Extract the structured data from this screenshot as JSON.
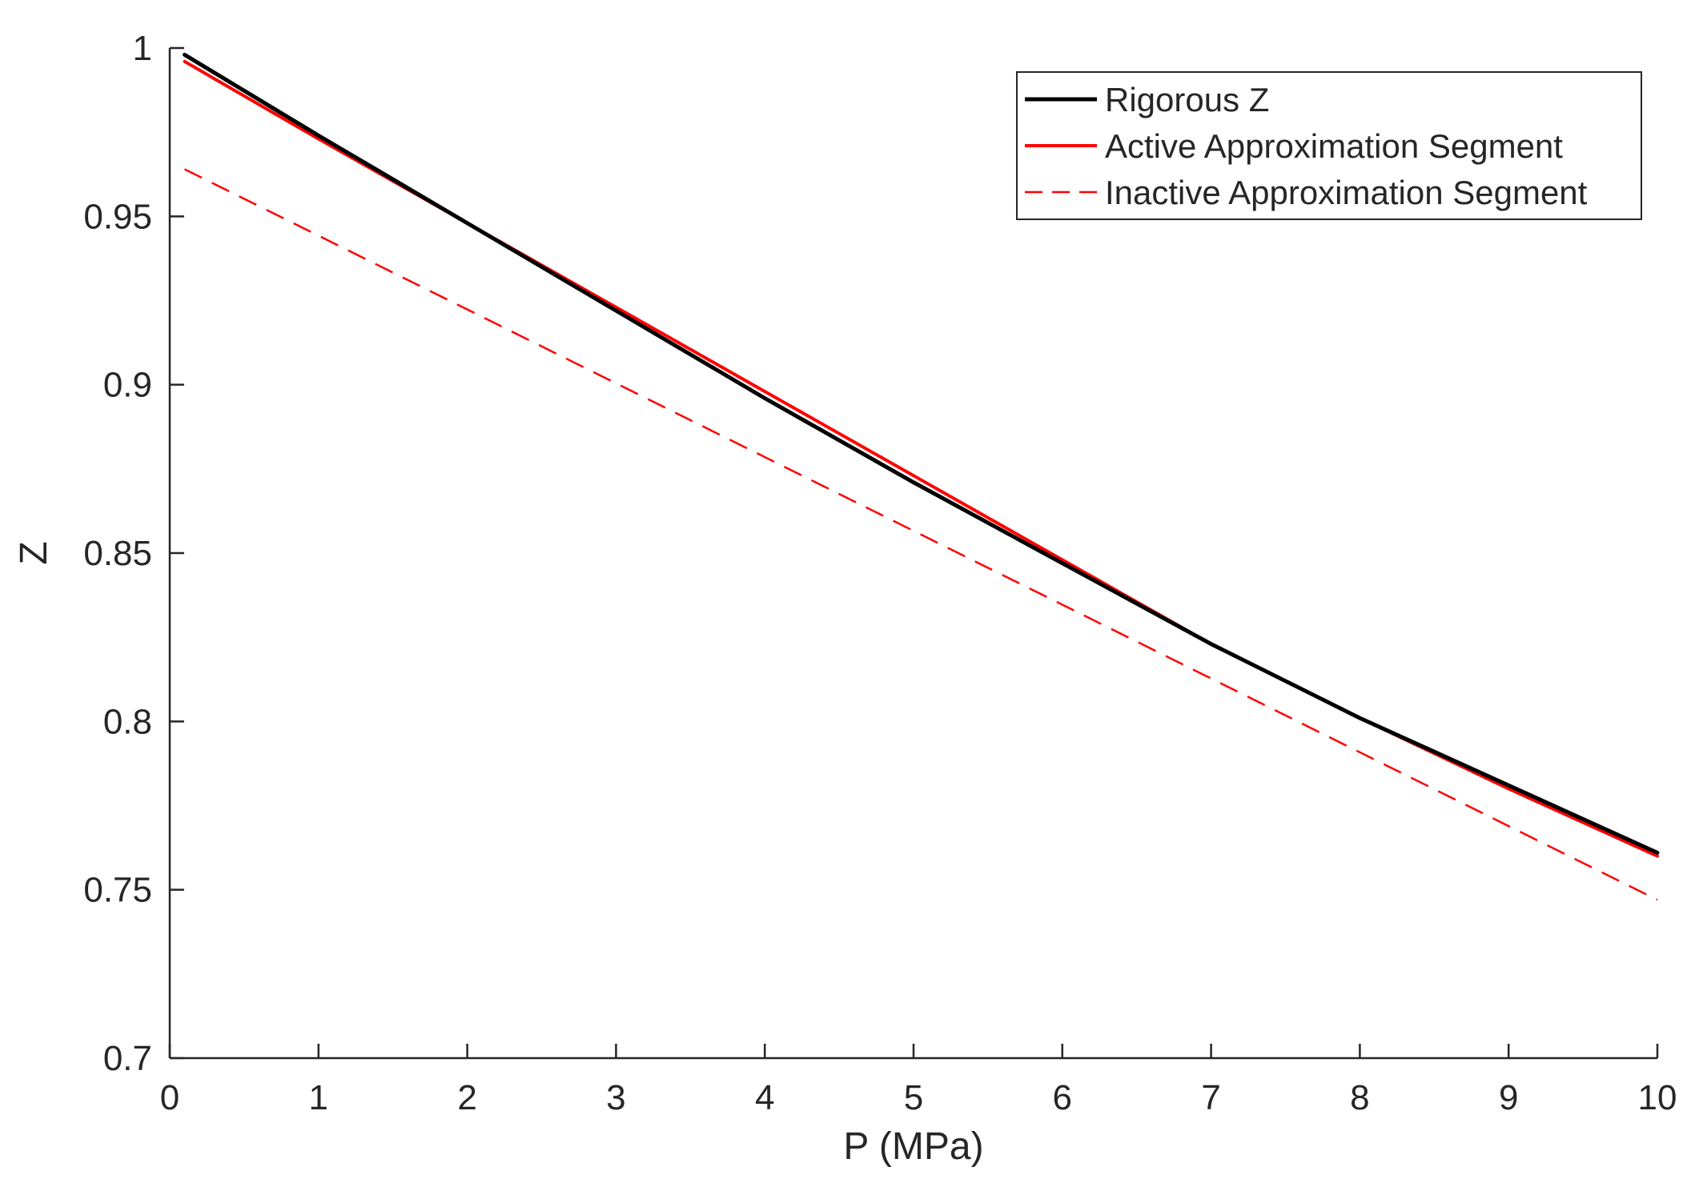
{
  "chart_data": {
    "type": "line",
    "xlabel": "P (MPa)",
    "ylabel": "Z",
    "xlim": [
      0,
      10
    ],
    "ylim": [
      0.7,
      1
    ],
    "xticks": [
      0,
      1,
      2,
      3,
      4,
      5,
      6,
      7,
      8,
      9,
      10
    ],
    "xtick_labels": [
      "0",
      "1",
      "2",
      "3",
      "4",
      "5",
      "6",
      "7",
      "8",
      "9",
      "10"
    ],
    "yticks": [
      0.7,
      0.75,
      0.8,
      0.85,
      0.9,
      0.95,
      1
    ],
    "ytick_labels": [
      "0.7",
      "0.75",
      "0.8",
      "0.85",
      "0.9",
      "0.95",
      "1"
    ],
    "grid": false,
    "legend_position": "top-right",
    "series": [
      {
        "name": "Rigorous Z",
        "color": "#000000",
        "style": "solid",
        "x": [
          0.1,
          1,
          2,
          3,
          4,
          5,
          6,
          7,
          8,
          9,
          10
        ],
        "y": [
          0.998,
          0.974,
          0.948,
          0.922,
          0.896,
          0.871,
          0.847,
          0.823,
          0.801,
          0.781,
          0.761
        ]
      },
      {
        "name": "Active Approximation Segment",
        "color": "#ff0000",
        "style": "solid",
        "x": [
          0.1,
          1,
          2,
          3,
          4,
          5,
          6,
          7,
          8,
          9,
          10
        ],
        "y": [
          0.996,
          0.973,
          0.948,
          0.923,
          0.898,
          0.873,
          0.848,
          0.823,
          0.801,
          0.78,
          0.76
        ]
      },
      {
        "name": "Inactive Approximation Segment",
        "color": "#ff0000",
        "style": "dashed",
        "x": [
          0.1,
          10
        ],
        "y": [
          0.964,
          0.747
        ]
      }
    ]
  }
}
